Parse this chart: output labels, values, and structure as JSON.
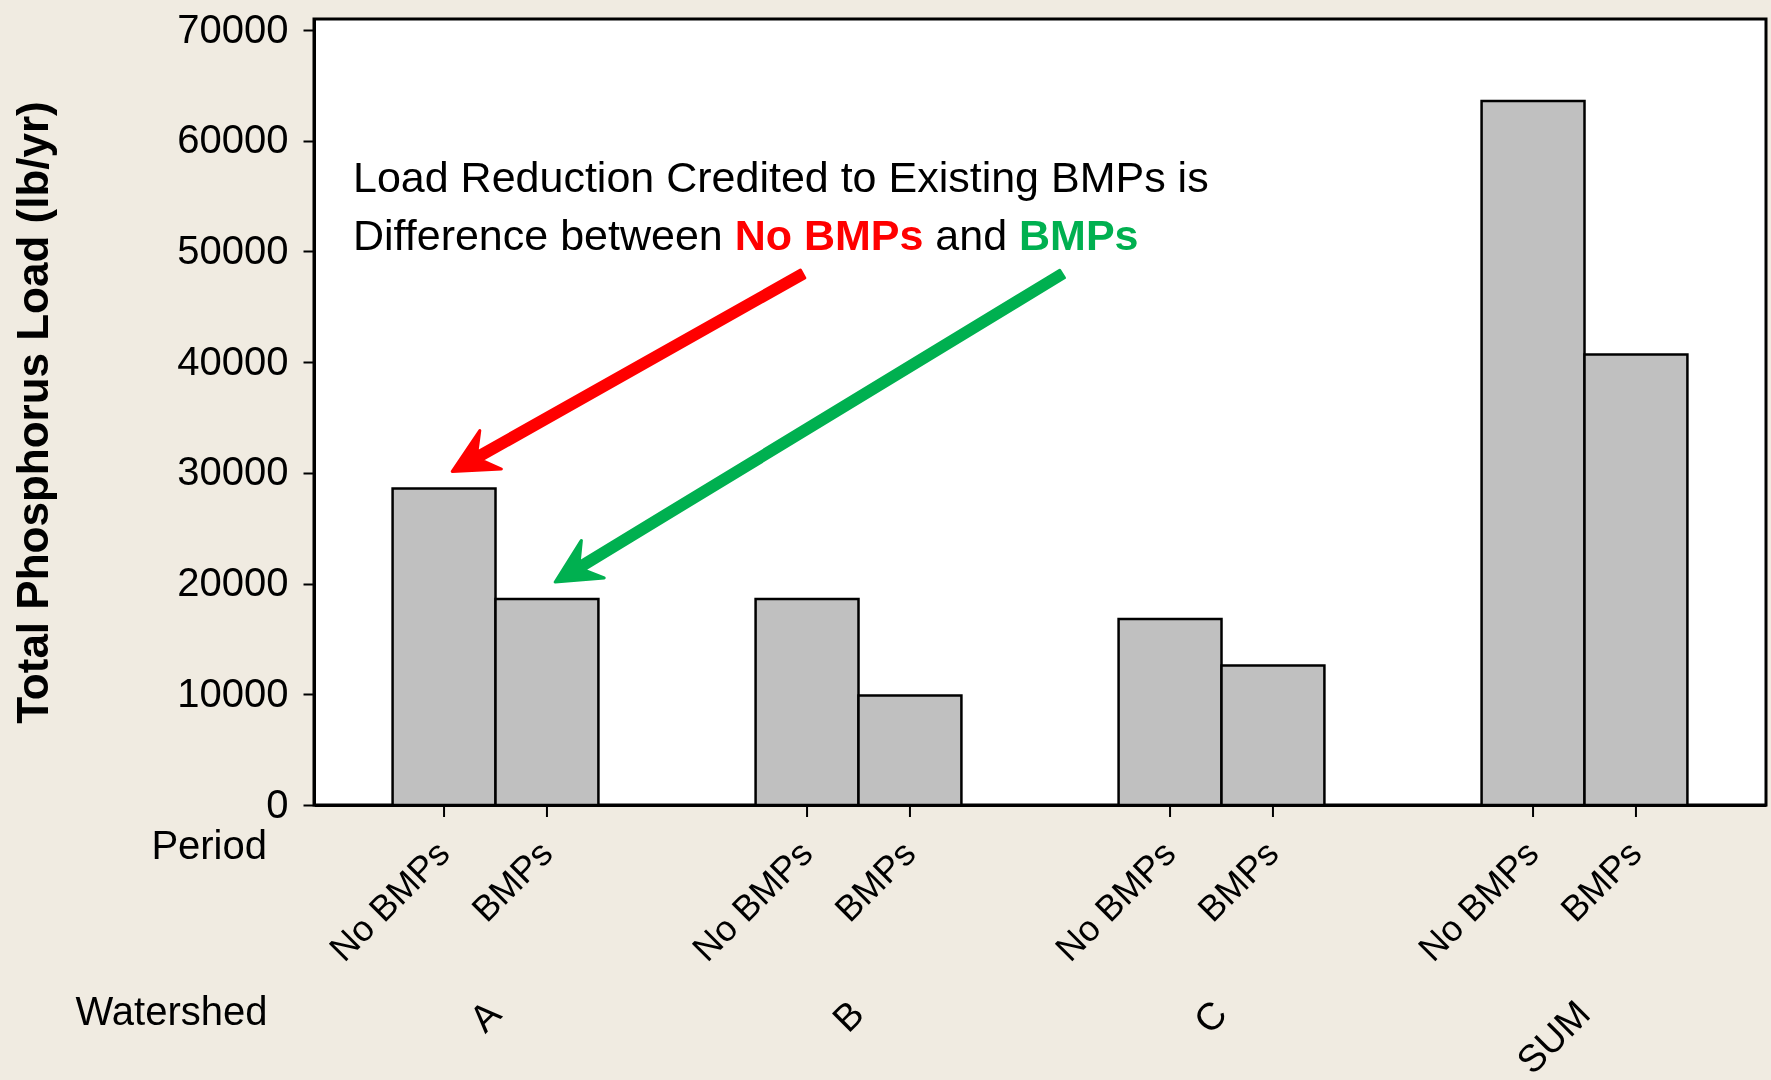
{
  "chart_data": {
    "type": "bar",
    "ylabel": "Total Phosphorus Load (lb/yr)",
    "xlabel": "Watershed",
    "legend_title": "Period",
    "legend": "bottom",
    "categories": [
      "A",
      "B",
      "C",
      "SUM"
    ],
    "series": [
      {
        "name": "No BMPs",
        "color": "#c0c0c0",
        "values": [
          28600,
          18600,
          16800,
          63600
        ]
      },
      {
        "name": "BMPs",
        "color": "#c0c0c0",
        "values": [
          18600,
          9900,
          12600,
          40700
        ]
      }
    ],
    "ylim": [
      0,
      71000
    ],
    "yticks": [
      0,
      10000,
      20000,
      30000,
      40000,
      50000,
      60000,
      70000
    ],
    "annotations": [
      "Load Reduction Credited to Existing BMPs is",
      "Difference between",
      "No BMPs",
      "and",
      "BMPs"
    ]
  }
}
